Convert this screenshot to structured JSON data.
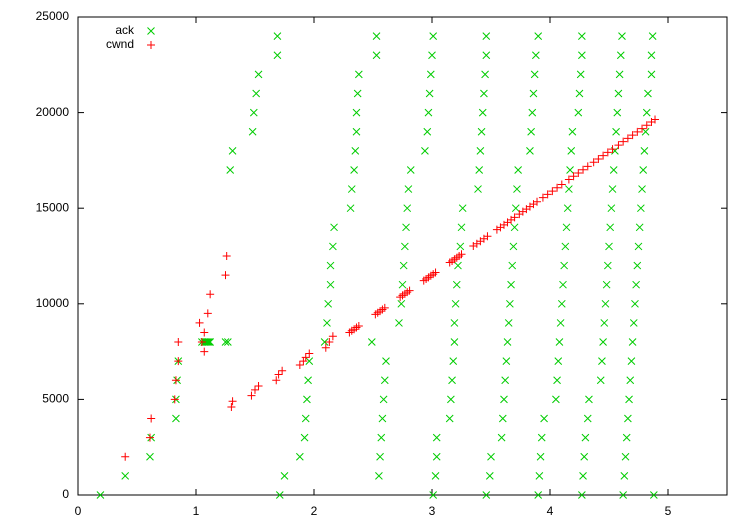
{
  "chart_data": {
    "type": "scatter",
    "xlim": [
      0,
      5.5
    ],
    "ylim": [
      0,
      25000
    ],
    "xticks": [
      0,
      1,
      2,
      3,
      4,
      5
    ],
    "yticks": [
      0,
      5000,
      10000,
      15000,
      20000,
      25000
    ],
    "legend": "top-left",
    "series": [
      {
        "name": "ack",
        "color": "#00cc00",
        "marker": "x",
        "x": [
          0.19,
          0.4,
          0.61,
          0.62,
          0.83,
          0.83,
          0.84,
          0.85,
          1.05,
          1.07,
          1.08,
          1.09,
          1.1,
          1.11,
          1.12,
          1.25,
          1.27,
          1.29,
          1.31,
          1.48,
          1.49,
          1.51,
          1.53,
          1.69,
          1.69,
          1.71,
          1.75,
          1.88,
          1.92,
          1.93,
          1.94,
          1.95,
          1.96,
          2.09,
          2.11,
          2.12,
          2.14,
          2.14,
          2.16,
          2.17,
          2.31,
          2.32,
          2.34,
          2.35,
          2.36,
          2.36,
          2.37,
          2.38,
          2.53,
          2.53,
          2.55,
          2.56,
          2.57,
          2.58,
          2.59,
          2.6,
          2.61,
          2.49,
          2.72,
          2.74,
          2.75,
          2.76,
          2.77,
          2.78,
          2.79,
          2.8,
          2.82,
          2.94,
          2.96,
          2.97,
          2.98,
          2.99,
          3.0,
          3.01,
          3.01,
          3.03,
          3.04,
          3.04,
          3.15,
          3.16,
          3.17,
          3.18,
          3.19,
          3.19,
          3.2,
          3.21,
          3.22,
          3.24,
          3.25,
          3.26,
          3.39,
          3.4,
          3.41,
          3.42,
          3.43,
          3.44,
          3.45,
          3.46,
          3.46,
          3.46,
          3.49,
          3.5,
          3.59,
          3.6,
          3.61,
          3.62,
          3.63,
          3.64,
          3.65,
          3.66,
          3.67,
          3.68,
          3.69,
          3.7,
          3.71,
          3.72,
          3.73,
          3.83,
          3.84,
          3.85,
          3.86,
          3.87,
          3.88,
          3.9,
          3.9,
          3.91,
          3.92,
          3.93,
          3.95,
          4.05,
          4.06,
          4.07,
          4.08,
          4.09,
          4.1,
          4.11,
          4.12,
          4.13,
          4.14,
          4.15,
          4.16,
          4.17,
          4.18,
          4.19,
          4.24,
          4.25,
          4.26,
          4.27,
          4.27,
          4.27,
          4.28,
          4.29,
          4.3,
          4.32,
          4.33,
          4.43,
          4.44,
          4.45,
          4.46,
          4.47,
          4.48,
          4.49,
          4.5,
          4.51,
          4.52,
          4.53,
          4.54,
          4.55,
          4.56,
          4.57,
          4.58,
          4.59,
          4.6,
          4.61,
          4.62,
          4.63,
          4.64,
          4.65,
          4.66,
          4.67,
          4.68,
          4.69,
          4.7,
          4.71,
          4.72,
          4.73,
          4.74,
          4.75,
          4.76,
          4.77,
          4.78,
          4.79,
          4.8,
          4.81,
          4.82,
          4.83,
          4.86,
          4.86,
          4.87,
          4.88
        ],
        "values": [
          0,
          1000,
          2000,
          3000,
          4000,
          5000,
          6000,
          7000,
          8000,
          8000,
          8000,
          8000,
          8000,
          8000,
          8000,
          8000,
          8000,
          17000,
          18000,
          19000,
          20000,
          21000,
          22000,
          23000,
          24000,
          0,
          1000,
          2000,
          3000,
          4000,
          5000,
          6000,
          7000,
          8000,
          9000,
          10000,
          11000,
          12000,
          13000,
          14000,
          15000,
          16000,
          17000,
          18000,
          19000,
          20000,
          21000,
          22000,
          23000,
          24000,
          1000,
          2000,
          3000,
          4000,
          5000,
          6000,
          7000,
          8000,
          9000,
          10000,
          11000,
          12000,
          13000,
          14000,
          15000,
          16000,
          17000,
          18000,
          19000,
          20000,
          21000,
          22000,
          23000,
          24000,
          0,
          1000,
          2000,
          3000,
          4000,
          5000,
          6000,
          7000,
          8000,
          9000,
          10000,
          11000,
          12000,
          13000,
          14000,
          15000,
          16000,
          17000,
          18000,
          19000,
          20000,
          21000,
          22000,
          23000,
          24000,
          0,
          1000,
          2000,
          3000,
          4000,
          5000,
          6000,
          7000,
          8000,
          9000,
          10000,
          11000,
          12000,
          13000,
          14000,
          15000,
          16000,
          17000,
          18000,
          19000,
          20000,
          21000,
          22000,
          23000,
          24000,
          0,
          1000,
          2000,
          3000,
          4000,
          5000,
          6000,
          7000,
          8000,
          9000,
          10000,
          11000,
          12000,
          13000,
          14000,
          15000,
          16000,
          17000,
          18000,
          19000,
          20000,
          21000,
          22000,
          23000,
          24000,
          0,
          1000,
          2000,
          3000,
          4000,
          5000,
          6000,
          7000,
          8000,
          9000,
          10000,
          11000,
          12000,
          13000,
          14000,
          15000,
          16000,
          17000,
          18000,
          19000,
          20000,
          21000,
          22000,
          23000,
          24000,
          0,
          1000,
          2000,
          3000,
          4000,
          5000,
          6000,
          7000,
          8000,
          9000,
          10000,
          11000,
          12000,
          13000,
          14000,
          15000,
          16000,
          17000,
          18000,
          19000,
          20000,
          21000,
          22000,
          23000,
          24000,
          0
        ]
      },
      {
        "name": "cwnd",
        "color": "#ff0000",
        "marker": "+",
        "x": [
          0.4,
          0.61,
          0.62,
          0.82,
          0.83,
          0.85,
          0.85,
          1.03,
          1.05,
          1.07,
          1.07,
          1.1,
          1.12,
          1.25,
          1.26,
          1.3,
          1.31,
          1.47,
          1.5,
          1.53,
          1.68,
          1.7,
          1.73,
          1.88,
          1.91,
          1.93,
          1.96,
          2.1,
          2.13,
          2.16,
          2.3,
          2.32,
          2.34,
          2.36,
          2.38,
          2.52,
          2.54,
          2.56,
          2.58,
          2.6,
          2.73,
          2.75,
          2.77,
          2.79,
          2.81,
          2.93,
          2.95,
          2.97,
          2.99,
          3.01,
          3.03,
          3.15,
          3.17,
          3.19,
          3.21,
          3.23,
          3.25,
          3.35,
          3.38,
          3.41,
          3.44,
          3.47,
          3.55,
          3.58,
          3.61,
          3.64,
          3.67,
          3.7,
          3.74,
          3.77,
          3.8,
          3.83,
          3.86,
          3.89,
          3.94,
          3.98,
          4.02,
          4.06,
          4.1,
          4.16,
          4.2,
          4.24,
          4.28,
          4.32,
          4.37,
          4.41,
          4.45,
          4.49,
          4.53,
          4.58,
          4.62,
          4.66,
          4.7,
          4.74,
          4.78,
          4.82,
          4.86,
          4.89
        ],
        "values": [
          2000,
          3000,
          4000,
          5000,
          6000,
          7000,
          8000,
          9000,
          8000,
          7500,
          8500,
          9500,
          10500,
          11500,
          12500,
          4600,
          4900,
          5200,
          5500,
          5700,
          6000,
          6300,
          6500,
          6800,
          7000,
          7200,
          7400,
          7700,
          8000,
          8300,
          8500,
          8590,
          8670,
          8760,
          8840,
          9450,
          9530,
          9620,
          9700,
          9790,
          10350,
          10440,
          10520,
          10610,
          10690,
          11210,
          11300,
          11380,
          11470,
          11550,
          11640,
          12160,
          12240,
          12330,
          12410,
          12500,
          12590,
          13020,
          13140,
          13270,
          13400,
          13530,
          13880,
          14000,
          14130,
          14260,
          14390,
          14520,
          14690,
          14820,
          14950,
          15080,
          15210,
          15340,
          15550,
          15720,
          15890,
          16070,
          16240,
          16500,
          16670,
          16840,
          17010,
          17190,
          17400,
          17570,
          17750,
          17920,
          18090,
          18300,
          18480,
          18650,
          18820,
          18990,
          19160,
          19340,
          19510,
          19640
        ]
      }
    ]
  }
}
